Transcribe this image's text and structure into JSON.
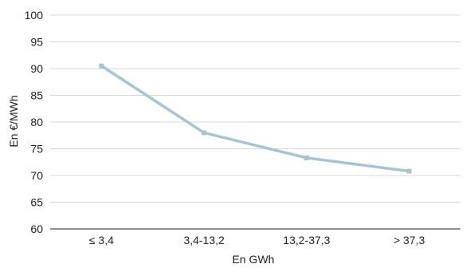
{
  "chart_data": {
    "type": "line",
    "title": "",
    "xlabel": "En GWh",
    "ylabel": "En €/MWh",
    "categories": [
      "≤ 3,4",
      "3,4-13,2",
      "13,2-37,3",
      "> 37,3"
    ],
    "series": [
      {
        "values": [
          90.5,
          78.0,
          73.3,
          70.8
        ]
      }
    ],
    "ylim": [
      60,
      100
    ],
    "yticks": [
      60,
      65,
      70,
      75,
      80,
      85,
      90,
      95,
      100
    ],
    "grid": true,
    "legend": "none",
    "colors": {
      "series": "#a8c4d1",
      "grid": "#d9d9d9",
      "axis": "#222222"
    }
  }
}
